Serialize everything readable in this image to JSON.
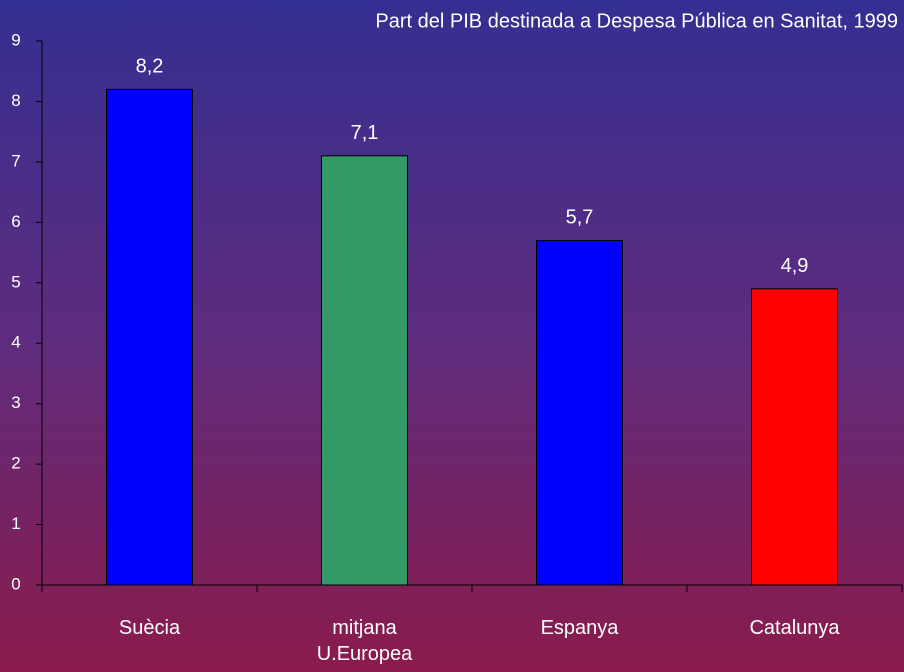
{
  "chart_data": {
    "type": "bar",
    "title": "Part del PIB destinada a Despesa Pública en Sanitat, 1999",
    "categories": [
      "Suècia",
      "mitjana\nU.Europea",
      "Espanya",
      "Catalunya"
    ],
    "values": [
      8.2,
      7.1,
      5.7,
      4.9
    ],
    "value_labels": [
      "8,2",
      "7,1",
      "5,7",
      "4,9"
    ],
    "colors": [
      "#0000ff",
      "#339966",
      "#0000ff",
      "#ff0000"
    ],
    "ylim": [
      0,
      9
    ],
    "yticks": [
      0,
      1,
      2,
      3,
      4,
      5,
      6,
      7,
      8,
      9
    ],
    "grid": false
  }
}
